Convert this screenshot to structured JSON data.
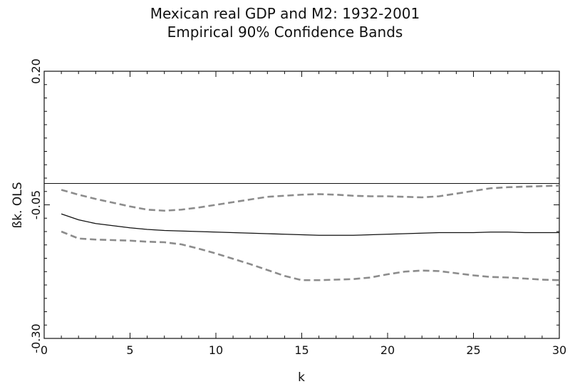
{
  "chart_data": {
    "type": "line",
    "title": "Mexican real GDP and M2: 1932-2001",
    "subtitle": "Empirical 90% Confidence Bands",
    "xlabel": "k",
    "ylabel": "ßk. OLS",
    "xlim": [
      0,
      30
    ],
    "ylim": [
      -0.3,
      0.2
    ],
    "x_ticks": [
      "0",
      "5",
      "10",
      "15",
      "20",
      "25",
      "30"
    ],
    "y_ticks": [
      "0.20",
      "-0.05",
      "-0.30"
    ],
    "y_tick_values": [
      0.2,
      -0.05,
      -0.3
    ],
    "reference_line": -0.01,
    "grid": false,
    "series": [
      {
        "style": "dashed",
        "color": "#8c8c8c",
        "x": [
          1,
          2,
          3,
          4,
          5,
          6,
          7,
          8,
          9,
          10,
          11,
          12,
          13,
          14,
          15,
          16,
          17,
          18,
          19,
          20,
          21,
          22,
          23,
          24,
          25,
          26,
          27,
          28,
          29,
          30
        ],
        "y": [
          -0.022,
          -0.031,
          -0.039,
          -0.046,
          -0.053,
          -0.059,
          -0.061,
          -0.059,
          -0.055,
          -0.05,
          -0.045,
          -0.04,
          -0.035,
          -0.033,
          -0.031,
          -0.03,
          -0.031,
          -0.033,
          -0.034,
          -0.034,
          -0.035,
          -0.036,
          -0.034,
          -0.029,
          -0.024,
          -0.019,
          -0.017,
          -0.016,
          -0.015,
          -0.014
        ]
      },
      {
        "style": "solid",
        "color": "#111111",
        "x": [
          1,
          2,
          3,
          4,
          5,
          6,
          7,
          8,
          9,
          10,
          11,
          12,
          13,
          14,
          15,
          16,
          17,
          18,
          19,
          20,
          21,
          22,
          23,
          24,
          25,
          26,
          27,
          28,
          29,
          30
        ],
        "y": [
          -0.067,
          -0.078,
          -0.085,
          -0.089,
          -0.093,
          -0.096,
          -0.098,
          -0.099,
          -0.1,
          -0.101,
          -0.102,
          -0.103,
          -0.104,
          -0.105,
          -0.106,
          -0.107,
          -0.107,
          -0.107,
          -0.106,
          -0.105,
          -0.104,
          -0.103,
          -0.102,
          -0.102,
          -0.102,
          -0.101,
          -0.101,
          -0.102,
          -0.102,
          -0.102
        ]
      },
      {
        "style": "dashed",
        "color": "#8c8c8c",
        "x": [
          1,
          2,
          3,
          4,
          5,
          6,
          7,
          8,
          9,
          10,
          11,
          12,
          13,
          14,
          15,
          16,
          17,
          18,
          19,
          20,
          21,
          22,
          23,
          24,
          25,
          26,
          27,
          28,
          29,
          30
        ],
        "y": [
          -0.1,
          -0.113,
          -0.115,
          -0.116,
          -0.117,
          -0.119,
          -0.12,
          -0.124,
          -0.132,
          -0.141,
          -0.151,
          -0.161,
          -0.172,
          -0.183,
          -0.191,
          -0.191,
          -0.19,
          -0.189,
          -0.186,
          -0.18,
          -0.175,
          -0.173,
          -0.174,
          -0.178,
          -0.182,
          -0.185,
          -0.186,
          -0.188,
          -0.19,
          -0.191
        ]
      }
    ]
  }
}
